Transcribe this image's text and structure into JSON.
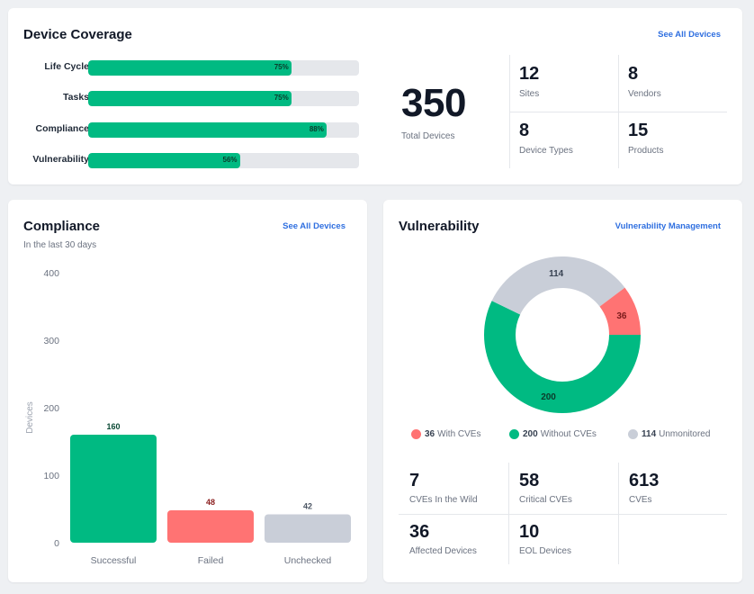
{
  "colors": {
    "green": "#00ba82",
    "red": "#ff7373",
    "gray": "#c9ced8",
    "link": "#2f6fe0",
    "track": "#e5e7eb"
  },
  "coverage": {
    "title": "Device Coverage",
    "link": "See All Devices",
    "rows": [
      {
        "label": "Life Cycle",
        "percent": 75,
        "percent_label": "75%"
      },
      {
        "label": "Tasks",
        "percent": 75,
        "percent_label": "75%"
      },
      {
        "label": "Compliance",
        "percent": 88,
        "percent_label": "88%"
      },
      {
        "label": "Vulnerability",
        "percent": 56,
        "percent_label": "56%"
      }
    ],
    "total": {
      "value": "350",
      "label": "Total Devices"
    },
    "stats": [
      {
        "value": "12",
        "label": "Sites"
      },
      {
        "value": "8",
        "label": "Vendors"
      },
      {
        "value": "8",
        "label": "Device Types"
      },
      {
        "value": "15",
        "label": "Products"
      }
    ]
  },
  "compliance": {
    "title": "Compliance",
    "subtitle": "In the last 30 days",
    "link": "See All Devices"
  },
  "vulnerability": {
    "title": "Vulnerability",
    "link": "Vulnerability Management",
    "legend": [
      {
        "value": "36",
        "label": "With CVEs",
        "color": "#ff7373"
      },
      {
        "value": "200",
        "label": "Without CVEs",
        "color": "#00ba82"
      },
      {
        "value": "114",
        "label": "Unmonitored",
        "color": "#c9ced8"
      }
    ],
    "stats": [
      {
        "value": "7",
        "label": "CVEs In the Wild"
      },
      {
        "value": "58",
        "label": "Critical CVEs"
      },
      {
        "value": "613",
        "label": "CVEs"
      },
      {
        "value": "36",
        "label": "Affected Devices"
      },
      {
        "value": "10",
        "label": "EOL Devices"
      }
    ]
  },
  "chart_data": [
    {
      "type": "bar",
      "title": "Compliance",
      "subtitle": "In the last 30 days",
      "categories": [
        "Successful",
        "Failed",
        "Unchecked"
      ],
      "values": [
        160,
        48,
        42
      ],
      "data_labels": [
        "160",
        "48",
        "42"
      ],
      "colors": [
        "#00ba82",
        "#ff7373",
        "#c9ced8"
      ],
      "label_colors": [
        "#0b4a35",
        "#8a1c1c",
        "#4b5563"
      ],
      "xlabel": "",
      "ylabel": "Devices",
      "ylim": [
        0,
        400
      ],
      "yticks": [
        0,
        100,
        200,
        300,
        400
      ],
      "ytick_labels": [
        "0",
        "100",
        "200",
        "300",
        "400"
      ],
      "grid": false,
      "legend": "none"
    },
    {
      "type": "pie",
      "subtype": "donut",
      "title": "Vulnerability",
      "categories": [
        "Without CVEs",
        "Unmonitored",
        "With CVEs"
      ],
      "values": [
        200,
        114,
        36
      ],
      "data_labels": [
        "200",
        "114",
        "36"
      ],
      "colors": [
        "#00ba82",
        "#c9ced8",
        "#ff7373"
      ],
      "label_colors": [
        "#0b3b2b",
        "#374151",
        "#7a1a1a"
      ],
      "start": "3-o'clock, clockwise",
      "legend": "bottom"
    }
  ]
}
